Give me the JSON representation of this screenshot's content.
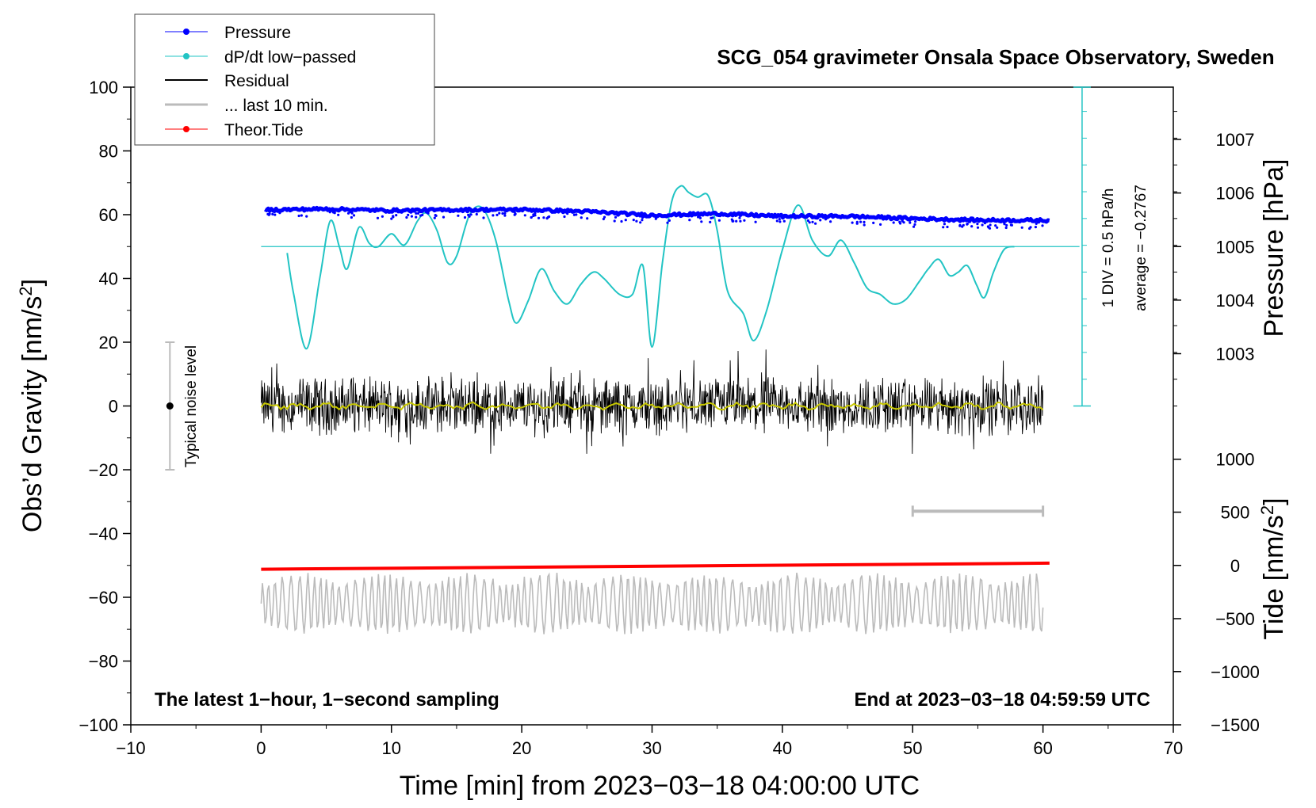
{
  "chart_data": {
    "type": "line",
    "title": "SCG_054 gravimeter Onsala Space Observatory, Sweden",
    "xlabel": "Time [min] from 2023−03−18 04:00:00 UTC",
    "ylabel_left": "Obs’d Gravity [nm/s",
    "ylabel_left_sup": "2",
    "ylabel_left_end": "]",
    "ylabel_right_pressure": "Pressure [hPa]",
    "ylabel_right_tide": "Tide [nm/s",
    "ylabel_right_tide_sup": "2",
    "ylabel_right_tide_end": "]",
    "xlim": [
      -10,
      70
    ],
    "ylim": [
      -100,
      100
    ],
    "x_ticks": [
      "−10",
      "0",
      "10",
      "20",
      "30",
      "40",
      "50",
      "60",
      "70"
    ],
    "y_ticks": [
      "−100",
      "−80",
      "−60",
      "−40",
      "−20",
      "0",
      "20",
      "40",
      "60",
      "80",
      "100"
    ],
    "pressure_axis": {
      "ticks": [
        "1003",
        "1004",
        "1005",
        "1006",
        "1007"
      ],
      "values": [
        1003,
        1004,
        1005,
        1006,
        1007
      ],
      "gravity_equiv": [
        16.4,
        33.2,
        50.0,
        66.8,
        83.6
      ]
    },
    "tide_axis": {
      "ticks": [
        "−1500",
        "−1000",
        "−500",
        "0",
        "500",
        "1000"
      ],
      "values": [
        -1500,
        -1000,
        -500,
        0,
        500,
        1000
      ],
      "gravity_equiv": [
        -100,
        -83.3,
        -66.7,
        -50,
        -33.3,
        -16.7
      ]
    },
    "legend": [
      "Pressure",
      "dP/dt low−passed",
      "Residual",
      "... last 10 min.",
      "Theor.Tide"
    ],
    "noise_label": "Typical noise level",
    "noise_bar": {
      "x": -7,
      "center": 0,
      "range": [
        -20,
        20
      ]
    },
    "dpdt_scale_label": "1 DIV = 0.5 hPa/h",
    "dpdt_average_label": "average = −0.2767",
    "dpdt_baseline": 50,
    "dpdt_axis_range": [
      0,
      100
    ],
    "scale_bar": {
      "x": [
        50,
        60
      ],
      "y": -33
    },
    "annotation_left": "The latest 1−hour, 1−second sampling",
    "annotation_right": "End at 2023−03−18 04:59:59 UTC",
    "series": [
      {
        "name": "Pressure",
        "color": "#0000ff",
        "x": [
          0.3,
          5,
          10,
          15,
          20,
          25,
          30,
          35,
          40,
          45,
          50,
          55,
          60.5
        ],
        "y": [
          61.5,
          61.8,
          61.3,
          61.5,
          61.6,
          61.0,
          59.8,
          60.3,
          59.5,
          59.5,
          58.8,
          58.3,
          58.2
        ]
      },
      {
        "name": "dP/dt low−passed",
        "color": "#22c4c4",
        "x": [
          2.0,
          2.5,
          3.5,
          4.5,
          5.3,
          6.0,
          6.6,
          7.5,
          8.3,
          9.0,
          10.0,
          11.0,
          12.0,
          12.7,
          13.5,
          14.3,
          15.0,
          16.0,
          17.0,
          18.0,
          19.0,
          19.6,
          20.5,
          21.5,
          22.5,
          23.5,
          24.5,
          25.5,
          26.3,
          27.5,
          28.5,
          29.3,
          30.0,
          30.8,
          31.5,
          32.2,
          32.8,
          33.5,
          34.3,
          35.0,
          35.8,
          37.0,
          37.8,
          38.8,
          40.0,
          41.2,
          42.3,
          43.5,
          44.5,
          45.5,
          46.5,
          47.5,
          48.5,
          49.5,
          50.5,
          51.2,
          52.0,
          52.8,
          53.5,
          54.2,
          54.9,
          55.5,
          56.2,
          57.0,
          57.8
        ],
        "y": [
          48.0,
          35.0,
          18.0,
          40.0,
          58.0,
          50.0,
          43.0,
          56.0,
          51.0,
          50.0,
          54.0,
          50.5,
          58.0,
          60.5,
          55.0,
          45.0,
          47.0,
          60.0,
          62.0,
          52.0,
          33.0,
          26.0,
          33.0,
          43.0,
          36.0,
          32.0,
          38.0,
          42.0,
          40.0,
          35.0,
          35.0,
          44.0,
          18.5,
          45.0,
          64.0,
          69.0,
          67.0,
          65.5,
          66.0,
          55.0,
          36.0,
          29.0,
          20.5,
          30.0,
          49.0,
          63.0,
          52.0,
          47.0,
          52.0,
          45.0,
          37.0,
          35.0,
          32.0,
          33.5,
          39.0,
          43.0,
          46.0,
          41.0,
          42.0,
          44.0,
          38.0,
          34.0,
          42.0,
          49.0,
          50.0
        ]
      },
      {
        "name": "Residual",
        "color": "#000000",
        "x": [
          0,
          60
        ],
        "y_range": [
          -15,
          19
        ]
      },
      {
        "name": "Residual smoothed",
        "color": "#c8c800",
        "x": [
          0,
          60
        ],
        "y": [
          0,
          0
        ]
      },
      {
        "name": "... last 10 min.",
        "color": "#bbbbbb",
        "x": [
          0,
          60
        ],
        "y_range": [
          -75,
          -49
        ]
      },
      {
        "name": "Theor.Tide",
        "color": "#ff0000",
        "x": [
          0,
          60.5
        ],
        "y": [
          -51.2,
          -49.3
        ]
      }
    ]
  }
}
